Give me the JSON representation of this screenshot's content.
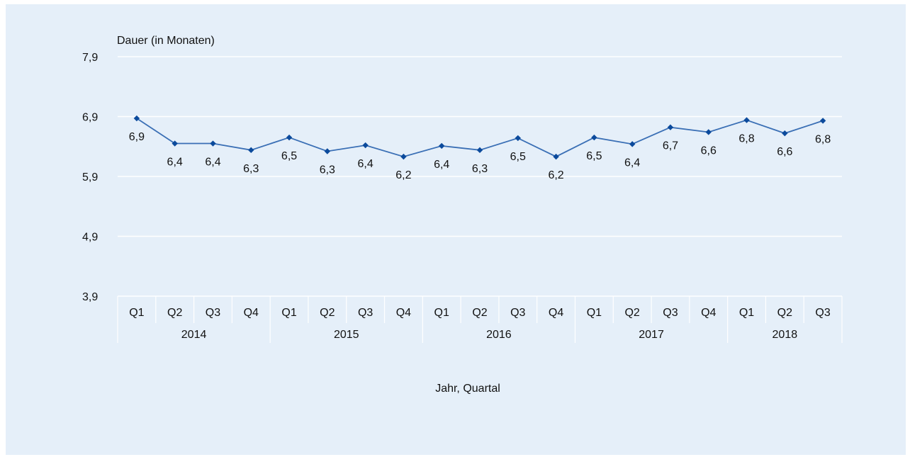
{
  "chart_data": {
    "type": "line",
    "ylabel": "Dauer (in Monaten)",
    "xlabel": "Jahr, Quartal",
    "ylim": [
      3.9,
      7.9
    ],
    "yticks": [
      "3,9",
      "4,9",
      "5,9",
      "6,9",
      "7,9"
    ],
    "ytick_values": [
      3.9,
      4.9,
      5.9,
      6.9,
      7.9
    ],
    "grid": true,
    "line_color": "#3a6fb5",
    "marker_color": "#0b4a9c",
    "categories": [
      "Q1",
      "Q2",
      "Q3",
      "Q4",
      "Q1",
      "Q2",
      "Q3",
      "Q4",
      "Q1",
      "Q2",
      "Q3",
      "Q4",
      "Q1",
      "Q2",
      "Q3",
      "Q4",
      "Q1",
      "Q2",
      "Q3"
    ],
    "groups": [
      {
        "label": "2014",
        "count": 4
      },
      {
        "label": "2015",
        "count": 4
      },
      {
        "label": "2016",
        "count": 4
      },
      {
        "label": "2017",
        "count": 4
      },
      {
        "label": "2018",
        "count": 3
      }
    ],
    "series": [
      {
        "values": [
          6.87,
          6.45,
          6.45,
          6.34,
          6.55,
          6.32,
          6.42,
          6.23,
          6.41,
          6.34,
          6.54,
          6.23,
          6.55,
          6.44,
          6.72,
          6.64,
          6.84,
          6.62,
          6.83
        ],
        "labels": [
          "6,9",
          "6,4",
          "6,4",
          "6,3",
          "6,5",
          "6,3",
          "6,4",
          "6,2",
          "6,4",
          "6,3",
          "6,5",
          "6,2",
          "6,5",
          "6,4",
          "6,7",
          "6,6",
          "6,8",
          "6,6",
          "6,8"
        ],
        "label_pos": [
          "below",
          "below",
          "below",
          "below",
          "above",
          "below",
          "below",
          "below",
          "below",
          "below",
          "above",
          "below",
          "above",
          "below",
          "below",
          "below",
          "above",
          "below",
          "above"
        ]
      }
    ]
  }
}
